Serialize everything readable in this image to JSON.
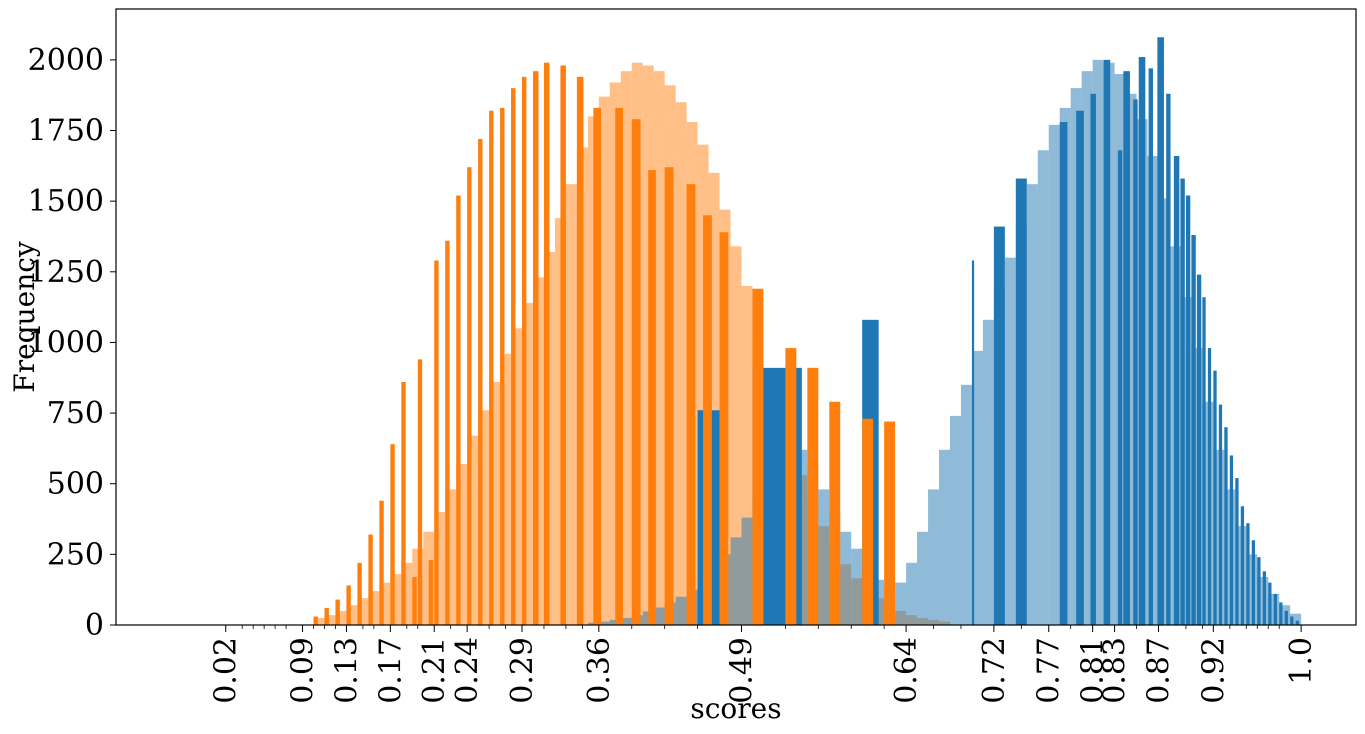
{
  "chart_data": {
    "type": "bar",
    "title": "",
    "xlabel": "scores",
    "ylabel": "Frequency",
    "ylim": [
      0,
      2180
    ],
    "xlim": [
      -0.08,
      1.05
    ],
    "grid": false,
    "y_ticks": [
      0,
      250,
      500,
      750,
      1000,
      1250,
      1500,
      1750,
      2000
    ],
    "x_tick_labels": [
      "0.02",
      "0.09",
      "0.13",
      "0.17",
      "0.21",
      "0.24",
      "0.29",
      "0.36",
      "0.49",
      "0.64",
      "0.72",
      "0.77",
      "0.81",
      "0.83",
      "0.87",
      "0.92",
      "1.0"
    ],
    "x_minor_ticks": [
      0.035,
      0.045,
      0.055,
      0.065,
      0.075,
      0.1,
      0.11,
      0.12,
      0.145,
      0.155,
      0.185,
      0.195,
      0.225,
      0.26,
      0.275,
      0.31,
      0.33,
      0.345,
      0.39,
      0.42,
      0.45,
      0.53,
      0.56,
      0.59,
      0.62,
      0.665,
      0.69,
      0.745,
      0.79,
      0.85,
      0.895,
      0.91,
      0.935,
      0.95,
      0.96,
      0.97,
      0.98
    ],
    "series": [
      {
        "color": "#ff7f0e",
        "opacity": 0.5,
        "bars": [
          [
            0.1,
            0.11,
            25
          ],
          [
            0.11,
            0.12,
            35
          ],
          [
            0.12,
            0.13,
            50
          ],
          [
            0.13,
            0.14,
            70
          ],
          [
            0.14,
            0.15,
            95
          ],
          [
            0.15,
            0.16,
            120
          ],
          [
            0.16,
            0.17,
            150
          ],
          [
            0.17,
            0.18,
            180
          ],
          [
            0.18,
            0.19,
            220
          ],
          [
            0.19,
            0.2,
            270
          ],
          [
            0.2,
            0.21,
            330
          ],
          [
            0.21,
            0.22,
            400
          ],
          [
            0.22,
            0.23,
            480
          ],
          [
            0.23,
            0.24,
            570
          ],
          [
            0.24,
            0.25,
            670
          ],
          [
            0.25,
            0.26,
            760
          ],
          [
            0.26,
            0.27,
            860
          ],
          [
            0.27,
            0.28,
            960
          ],
          [
            0.28,
            0.29,
            1050
          ],
          [
            0.29,
            0.3,
            1140
          ],
          [
            0.3,
            0.31,
            1230
          ],
          [
            0.31,
            0.32,
            1320
          ],
          [
            0.32,
            0.33,
            1440
          ],
          [
            0.33,
            0.34,
            1560
          ],
          [
            0.34,
            0.35,
            1690
          ],
          [
            0.35,
            0.36,
            1800
          ],
          [
            0.36,
            0.37,
            1870
          ],
          [
            0.37,
            0.38,
            1920
          ],
          [
            0.38,
            0.39,
            1960
          ],
          [
            0.39,
            0.4,
            1990
          ],
          [
            0.4,
            0.41,
            1980
          ],
          [
            0.41,
            0.42,
            1960
          ],
          [
            0.42,
            0.43,
            1910
          ],
          [
            0.43,
            0.44,
            1850
          ],
          [
            0.44,
            0.45,
            1780
          ],
          [
            0.45,
            0.46,
            1700
          ],
          [
            0.46,
            0.47,
            1600
          ],
          [
            0.47,
            0.48,
            1470
          ],
          [
            0.48,
            0.49,
            1340
          ],
          [
            0.49,
            0.5,
            1200
          ],
          [
            0.5,
            0.51,
            1050
          ],
          [
            0.51,
            0.52,
            900
          ],
          [
            0.52,
            0.53,
            760
          ],
          [
            0.53,
            0.54,
            640
          ],
          [
            0.54,
            0.55,
            530
          ],
          [
            0.55,
            0.56,
            430
          ],
          [
            0.56,
            0.57,
            350
          ],
          [
            0.57,
            0.58,
            280
          ],
          [
            0.58,
            0.59,
            215
          ],
          [
            0.59,
            0.6,
            165
          ],
          [
            0.6,
            0.61,
            125
          ],
          [
            0.61,
            0.62,
            95
          ],
          [
            0.62,
            0.63,
            70
          ],
          [
            0.63,
            0.64,
            50
          ],
          [
            0.64,
            0.65,
            35
          ],
          [
            0.65,
            0.66,
            25
          ],
          [
            0.66,
            0.67,
            18
          ],
          [
            0.67,
            0.68,
            12
          ]
        ]
      },
      {
        "color": "#1f77b4",
        "opacity": 0.5,
        "bars": [
          [
            0.35,
            0.36,
            8
          ],
          [
            0.36,
            0.37,
            12
          ],
          [
            0.37,
            0.38,
            18
          ],
          [
            0.38,
            0.39,
            25
          ],
          [
            0.39,
            0.4,
            35
          ],
          [
            0.4,
            0.41,
            48
          ],
          [
            0.41,
            0.42,
            62
          ],
          [
            0.42,
            0.43,
            80
          ],
          [
            0.43,
            0.44,
            100
          ],
          [
            0.44,
            0.45,
            125
          ],
          [
            0.45,
            0.46,
            160
          ],
          [
            0.46,
            0.47,
            200
          ],
          [
            0.47,
            0.48,
            250
          ],
          [
            0.48,
            0.49,
            310
          ],
          [
            0.49,
            0.5,
            380
          ],
          [
            0.5,
            0.51,
            460
          ],
          [
            0.51,
            0.52,
            540
          ],
          [
            0.52,
            0.53,
            600
          ],
          [
            0.53,
            0.54,
            640
          ],
          [
            0.54,
            0.55,
            620
          ],
          [
            0.55,
            0.56,
            560
          ],
          [
            0.56,
            0.57,
            480
          ],
          [
            0.57,
            0.58,
            400
          ],
          [
            0.58,
            0.59,
            330
          ],
          [
            0.59,
            0.6,
            270
          ],
          [
            0.6,
            0.61,
            220
          ],
          [
            0.61,
            0.62,
            160
          ],
          [
            0.62,
            0.63,
            130
          ],
          [
            0.63,
            0.64,
            150
          ],
          [
            0.64,
            0.65,
            220
          ],
          [
            0.65,
            0.66,
            330
          ],
          [
            0.66,
            0.67,
            480
          ],
          [
            0.67,
            0.68,
            620
          ],
          [
            0.68,
            0.69,
            740
          ],
          [
            0.69,
            0.7,
            850
          ],
          [
            0.7,
            0.71,
            970
          ],
          [
            0.71,
            0.72,
            1080
          ],
          [
            0.72,
            0.73,
            1190
          ],
          [
            0.73,
            0.74,
            1300
          ],
          [
            0.74,
            0.75,
            1420
          ],
          [
            0.75,
            0.76,
            1560
          ],
          [
            0.76,
            0.77,
            1680
          ],
          [
            0.77,
            0.78,
            1770
          ],
          [
            0.78,
            0.79,
            1830
          ],
          [
            0.79,
            0.8,
            1900
          ],
          [
            0.8,
            0.81,
            1960
          ],
          [
            0.81,
            0.82,
            2000
          ],
          [
            0.82,
            0.83,
            1990
          ],
          [
            0.83,
            0.84,
            1950
          ],
          [
            0.84,
            0.85,
            1880
          ],
          [
            0.85,
            0.86,
            1790
          ],
          [
            0.86,
            0.87,
            1660
          ],
          [
            0.87,
            0.88,
            1510
          ],
          [
            0.88,
            0.89,
            1340
          ],
          [
            0.89,
            0.9,
            1160
          ],
          [
            0.9,
            0.91,
            980
          ],
          [
            0.91,
            0.92,
            790
          ],
          [
            0.92,
            0.93,
            620
          ],
          [
            0.93,
            0.94,
            480
          ],
          [
            0.94,
            0.95,
            350
          ],
          [
            0.95,
            0.96,
            250
          ],
          [
            0.96,
            0.97,
            170
          ],
          [
            0.97,
            0.98,
            110
          ],
          [
            0.98,
            0.99,
            70
          ],
          [
            0.99,
            1.0,
            40
          ]
        ]
      },
      {
        "color": "#1f77b4",
        "opacity": 1,
        "bars": [
          [
            0.45,
            0.47,
            760
          ],
          [
            0.5,
            0.545,
            910
          ],
          [
            0.6,
            0.615,
            1080
          ],
          [
            0.7,
            0.702,
            1290
          ],
          [
            0.72,
            0.73,
            1410
          ],
          [
            0.74,
            0.75,
            1580
          ],
          [
            0.78,
            0.787,
            1780
          ],
          [
            0.795,
            0.802,
            1820
          ],
          [
            0.808,
            0.813,
            1880
          ],
          [
            0.82,
            0.826,
            2000
          ],
          [
            0.833,
            0.837,
            1680
          ],
          [
            0.838,
            0.844,
            1960
          ],
          [
            0.847,
            0.851,
            1860
          ],
          [
            0.852,
            0.858,
            2010
          ],
          [
            0.861,
            0.865,
            1970
          ],
          [
            0.869,
            0.875,
            2080
          ],
          [
            0.877,
            0.881,
            1880
          ],
          [
            0.884,
            0.889,
            1660
          ],
          [
            0.89,
            0.894,
            1580
          ],
          [
            0.895,
            0.899,
            1520
          ],
          [
            0.9,
            0.904,
            1380
          ],
          [
            0.905,
            0.909,
            1240
          ],
          [
            0.91,
            0.913,
            1160
          ],
          [
            0.915,
            0.918,
            980
          ],
          [
            0.92,
            0.923,
            900
          ],
          [
            0.925,
            0.928,
            780
          ],
          [
            0.93,
            0.933,
            700
          ],
          [
            0.935,
            0.938,
            600
          ],
          [
            0.94,
            0.943,
            520
          ],
          [
            0.945,
            0.948,
            420
          ],
          [
            0.95,
            0.953,
            360
          ],
          [
            0.955,
            0.958,
            300
          ],
          [
            0.96,
            0.963,
            240
          ],
          [
            0.965,
            0.968,
            190
          ],
          [
            0.97,
            0.973,
            150
          ],
          [
            0.975,
            0.978,
            110
          ],
          [
            0.98,
            0.983,
            80
          ],
          [
            0.985,
            0.988,
            50
          ],
          [
            0.99,
            0.993,
            30
          ],
          [
            0.995,
            0.998,
            15
          ]
        ]
      },
      {
        "color": "#ff7f0e",
        "opacity": 1,
        "bars": [
          [
            0.1,
            0.104,
            30
          ],
          [
            0.11,
            0.114,
            60
          ],
          [
            0.12,
            0.124,
            90
          ],
          [
            0.13,
            0.134,
            140
          ],
          [
            0.14,
            0.144,
            220
          ],
          [
            0.15,
            0.154,
            320
          ],
          [
            0.16,
            0.164,
            440
          ],
          [
            0.17,
            0.174,
            640
          ],
          [
            0.18,
            0.184,
            860
          ],
          [
            0.19,
            0.194,
            170
          ],
          [
            0.195,
            0.199,
            940
          ],
          [
            0.205,
            0.209,
            230
          ],
          [
            0.21,
            0.214,
            1290
          ],
          [
            0.22,
            0.224,
            1360
          ],
          [
            0.23,
            0.234,
            1520
          ],
          [
            0.24,
            0.244,
            1620
          ],
          [
            0.25,
            0.254,
            1720
          ],
          [
            0.26,
            0.264,
            1820
          ],
          [
            0.27,
            0.274,
            1830
          ],
          [
            0.28,
            0.284,
            1900
          ],
          [
            0.29,
            0.294,
            1940
          ],
          [
            0.3,
            0.305,
            1960
          ],
          [
            0.31,
            0.315,
            1990
          ],
          [
            0.325,
            0.33,
            1980
          ],
          [
            0.34,
            0.346,
            1940
          ],
          [
            0.355,
            0.362,
            1830
          ],
          [
            0.375,
            0.382,
            1830
          ],
          [
            0.39,
            0.398,
            1790
          ],
          [
            0.405,
            0.412,
            1610
          ],
          [
            0.42,
            0.428,
            1620
          ],
          [
            0.44,
            0.448,
            1560
          ],
          [
            0.455,
            0.463,
            1450
          ],
          [
            0.47,
            0.478,
            1390
          ],
          [
            0.5,
            0.51,
            1190
          ],
          [
            0.53,
            0.54,
            980
          ],
          [
            0.55,
            0.56,
            910
          ],
          [
            0.57,
            0.58,
            790
          ],
          [
            0.6,
            0.61,
            730
          ],
          [
            0.62,
            0.63,
            720
          ]
        ]
      }
    ]
  }
}
